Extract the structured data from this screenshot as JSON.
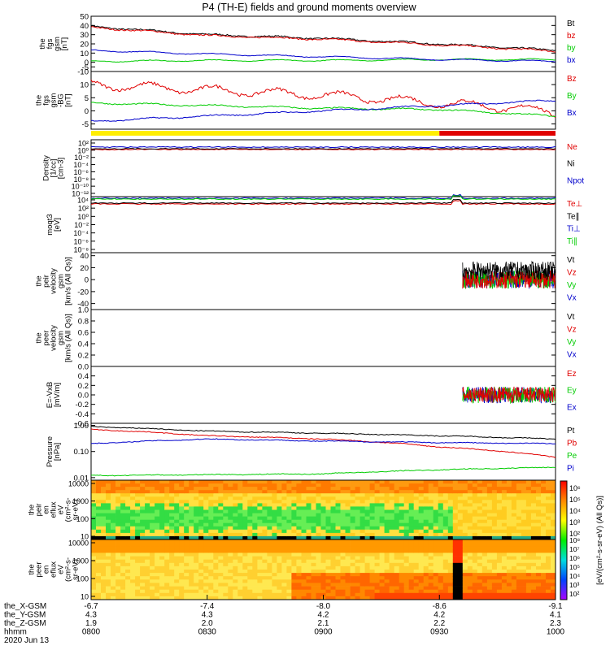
{
  "title": "P4 (TH-E) fields and ground moments overview",
  "colors": {
    "black": "#000000",
    "red": "#e00000",
    "green": "#00cc00",
    "blue": "#0000cc"
  },
  "chart_data": [
    {
      "id": "p1",
      "type": "line",
      "ylabel": [
        "the",
        "fgs",
        "gsm",
        "[nT]"
      ],
      "ylim": [
        -10,
        50
      ],
      "ticks": [
        "50",
        "40",
        "30",
        "20",
        "10",
        "0",
        "-5",
        "-10"
      ],
      "tick_values": [
        50,
        40,
        30,
        20,
        10,
        0,
        -5,
        -10
      ],
      "legend": [
        "Bt",
        "bz",
        "by",
        "bx"
      ],
      "series": [
        {
          "name": "Bt",
          "color": "black",
          "x": [
            0,
            0.5,
            1,
            1.5,
            2
          ],
          "y": [
            39,
            30,
            26,
            20,
            13
          ]
        },
        {
          "name": "bz",
          "color": "red",
          "x": [
            0,
            0.5,
            1,
            1.5,
            2
          ],
          "y": [
            38,
            29,
            25,
            19,
            12
          ]
        },
        {
          "name": "by",
          "color": "green",
          "x": [
            0,
            0.5,
            1,
            1.5,
            2
          ],
          "y": [
            1,
            2,
            2,
            3,
            3
          ]
        },
        {
          "name": "bx",
          "color": "blue",
          "x": [
            0,
            0.5,
            1,
            1.5,
            2
          ],
          "y": [
            13,
            9,
            6,
            3,
            1
          ]
        }
      ]
    },
    {
      "id": "p2",
      "type": "line",
      "ylabel": [
        "the",
        "fgs",
        "gsm",
        "-BG",
        "[nT]"
      ],
      "ylim": [
        -7,
        15
      ],
      "ticks": [
        "10",
        "5",
        "0",
        "-5"
      ],
      "tick_values": [
        10,
        5,
        0,
        -5
      ],
      "legend": [
        "Bz",
        "By",
        "Bx"
      ],
      "series": [
        {
          "name": "Bz",
          "color": "red",
          "x": [
            0,
            0.5,
            1,
            1.5,
            1.85,
            2
          ],
          "y": [
            10,
            8,
            6,
            3,
            1,
            -1
          ]
        },
        {
          "name": "By",
          "color": "green",
          "x": [
            0,
            0.5,
            1,
            1.5,
            2
          ],
          "y": [
            3,
            2,
            1,
            0.5,
            -2
          ]
        },
        {
          "name": "Bx",
          "color": "blue",
          "x": [
            0,
            0.5,
            1,
            1.5,
            2
          ],
          "y": [
            -4,
            -2,
            0,
            2,
            4
          ]
        }
      ]
    },
    {
      "id": "bar",
      "type": "bar",
      "segments": [
        {
          "from": 0,
          "to": 1.5,
          "color": "#ffee00"
        },
        {
          "from": 1.5,
          "to": 2,
          "color": "#e00000"
        }
      ]
    },
    {
      "id": "p3",
      "type": "line",
      "scale": "log",
      "ylabel": [
        "Density",
        "[1/cc]",
        "[cm-3]"
      ],
      "ticks": [
        "10²",
        "10⁰",
        "10⁻²",
        "10⁻⁴",
        "10⁻⁶",
        "10⁻⁸",
        "10⁻¹⁰",
        "10⁻¹²"
      ],
      "legend": [
        "Ne",
        "Ni",
        "Npot"
      ],
      "series": [
        {
          "name": "Ne",
          "color": "red"
        },
        {
          "name": "Ni",
          "color": "black"
        },
        {
          "name": "Npot",
          "color": "blue"
        }
      ]
    },
    {
      "id": "p4",
      "type": "line",
      "scale": "log",
      "ylabel": [
        "moqt3",
        "[eV]"
      ],
      "ticks": [
        "10⁴",
        "10²",
        "10⁰",
        "10⁻²",
        "10⁻⁴",
        "10⁻⁶",
        "10⁻⁸"
      ],
      "legend": [
        "Te⊥",
        "Te∥",
        "Ti⊥",
        "Ti∥"
      ],
      "series": [
        {
          "name": "Te⊥",
          "color": "red"
        },
        {
          "name": "Te∥",
          "color": "black"
        },
        {
          "name": "Ti⊥",
          "color": "blue"
        },
        {
          "name": "Ti∥",
          "color": "green"
        }
      ]
    },
    {
      "id": "p5",
      "type": "line",
      "ylabel": [
        "the",
        "peir",
        "velocity",
        "gsm",
        "[km/s (All Qs)]"
      ],
      "ylim": [
        -50,
        45
      ],
      "ticks": [
        "40",
        "20",
        "0",
        "-20",
        "-40"
      ],
      "tick_values": [
        40,
        20,
        0,
        -20,
        -40
      ],
      "legend": [
        "Vt",
        "Vz",
        "Vy",
        "Vx"
      ],
      "series": [
        {
          "name": "Vt",
          "color": "black"
        },
        {
          "name": "Vz",
          "color": "red"
        },
        {
          "name": "Vy",
          "color": "green"
        },
        {
          "name": "Vx",
          "color": "blue"
        }
      ]
    },
    {
      "id": "p6",
      "type": "line",
      "ylabel": [
        "the",
        "peer",
        "velocity",
        "gsm",
        "[km/s (All Qs)]"
      ],
      "ylim": [
        0,
        1
      ],
      "ticks": [
        "1.0",
        "0.8",
        "0.6",
        "0.4",
        "0.2",
        "0.0"
      ],
      "tick_values": [
        1,
        0.8,
        0.6,
        0.4,
        0.2,
        0
      ],
      "legend": [
        "Vt",
        "Vz",
        "Vy",
        "Vx"
      ],
      "series": [
        {
          "name": "Vt",
          "color": "black"
        },
        {
          "name": "Vz",
          "color": "red"
        },
        {
          "name": "Vy",
          "color": "green"
        },
        {
          "name": "Vx",
          "color": "blue"
        }
      ]
    },
    {
      "id": "p7",
      "type": "line",
      "ylabel": [
        "E=-VxB",
        "[mV/m]"
      ],
      "ylim": [
        -0.6,
        0.6
      ],
      "ticks": [
        "0.4",
        "0.2",
        "0.0",
        "-0.2",
        "-0.4",
        "-0.6"
      ],
      "tick_values": [
        0.4,
        0.2,
        0,
        -0.2,
        -0.4,
        -0.6
      ],
      "legend": [
        "Ez",
        "Ey",
        "Ex"
      ],
      "series": [
        {
          "name": "Ez",
          "color": "red"
        },
        {
          "name": "Ey",
          "color": "green"
        },
        {
          "name": "Ex",
          "color": "blue"
        }
      ]
    },
    {
      "id": "p8",
      "type": "line",
      "scale": "log",
      "ylabel": [
        "Pressure",
        "[nPa]"
      ],
      "ylim": [
        0.008,
        1.2
      ],
      "ticks": [
        "1.00",
        "0.10",
        "0.01"
      ],
      "tick_values": [
        1,
        0.1,
        0.01
      ],
      "legend": [
        "Pt",
        "Pb",
        "Pe",
        "Pi"
      ],
      "series": [
        {
          "name": "Pt",
          "color": "black",
          "x": [
            0,
            0.5,
            1,
            1.5,
            2
          ],
          "y": [
            0.9,
            0.6,
            0.5,
            0.4,
            0.3
          ]
        },
        {
          "name": "Pb",
          "color": "red",
          "x": [
            0,
            0.5,
            1,
            1.5,
            2
          ],
          "y": [
            0.7,
            0.4,
            0.3,
            0.15,
            0.06
          ]
        },
        {
          "name": "Pe",
          "color": "green",
          "x": [
            0,
            0.5,
            1,
            1.5,
            2
          ],
          "y": [
            0.012,
            0.013,
            0.014,
            0.02,
            0.025
          ]
        },
        {
          "name": "Pi",
          "color": "blue",
          "x": [
            0,
            0.5,
            1,
            1.5,
            2
          ],
          "y": [
            0.2,
            0.3,
            0.25,
            0.22,
            0.2
          ]
        }
      ]
    },
    {
      "id": "p9",
      "type": "heatmap",
      "ylabel": [
        "the",
        "peir",
        "en",
        "eflux",
        "eV",
        "(cm²-s-",
        "sr-eV)"
      ],
      "ticks": [
        "10000",
        "1000",
        "100",
        "10"
      ]
    },
    {
      "id": "p10",
      "type": "heatmap",
      "ylabel": [
        "the",
        "peer",
        "en",
        "eflux",
        "eV",
        "(cm²-s-",
        "sr-eV)"
      ],
      "ticks": [
        "10000",
        "1000",
        "100",
        "10"
      ]
    }
  ],
  "colorbar": {
    "label": "[eV/(cm²-s-sr-eV) (All Qs)]",
    "ticks_upper": [
      "10⁶",
      "10⁵",
      "10⁴",
      "10³",
      "10²"
    ],
    "ticks_lower": [
      "10⁸",
      "10⁷",
      "10⁶",
      "10⁵",
      "10⁴",
      "10³",
      "10²"
    ]
  },
  "time_axis": {
    "rows": [
      {
        "label": "the_X-GSM",
        "values": [
          "-6.7",
          "-7.4",
          "-8.0",
          "-8.6",
          "-9.1"
        ]
      },
      {
        "label": "the_Y-GSM",
        "values": [
          "4.3",
          "4.3",
          "4.2",
          "4.2",
          "4.1"
        ]
      },
      {
        "label": "the_Z-GSM",
        "values": [
          "1.9",
          "2.0",
          "2.1",
          "2.2",
          "2.3"
        ]
      },
      {
        "label": "hhmm",
        "values": [
          "0800",
          "0830",
          "0900",
          "0930",
          "1000"
        ]
      }
    ],
    "date": "2020 Jun 13"
  }
}
